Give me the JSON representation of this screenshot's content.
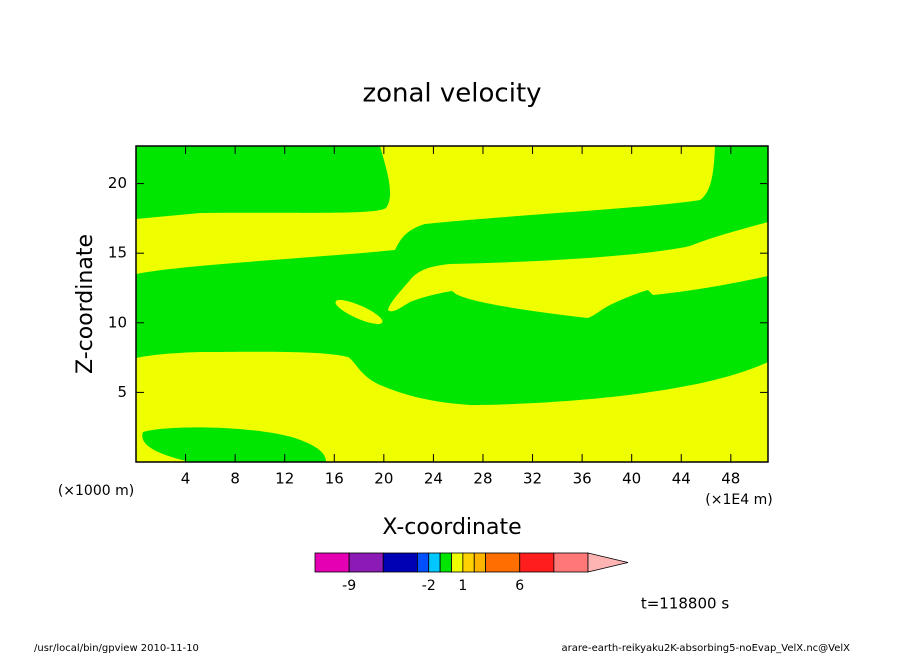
{
  "chart_data": {
    "type": "contour",
    "title": "zonal velocity",
    "x_label": "X-coordinate",
    "y_label": "Z-coordinate",
    "x_unit": "(×1E4 m)",
    "y_unit": "(×1000 m)",
    "xlim": [
      0,
      51
    ],
    "xticks": [
      4,
      8,
      12,
      16,
      20,
      24,
      28,
      32,
      36,
      40,
      44,
      48
    ],
    "ylim": [
      0,
      22.7
    ],
    "yticks": [
      5,
      10,
      15,
      20
    ],
    "colorbar": {
      "levels": [
        -12,
        -9,
        -6,
        -3,
        -2,
        -1,
        0,
        1,
        2,
        3,
        6,
        9,
        12
      ],
      "colors": [
        "#e600b4",
        "#8c1ab4",
        "#0000b4",
        "#0050ff",
        "#00c8ff",
        "#00e600",
        "#f0ff00",
        "#ffd200",
        "#ffb400",
        "#ff6e00",
        "#ff1e1e",
        "#ff7878"
      ],
      "extend_color": "#ffb4b4",
      "ticks": [
        -9,
        -2,
        1,
        6
      ]
    },
    "annotation": "t=118800 s",
    "footer_left": "/usr/local/bin/gpview  2010-11-10",
    "footer_right": "arare-earth-reikyaku2K-absorbing5-noEvap_VelX.nc@VelX"
  }
}
